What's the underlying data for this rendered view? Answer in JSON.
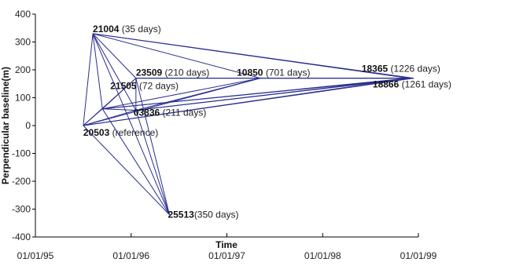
{
  "chart_data": {
    "type": "scatter",
    "xlabel": "Time",
    "ylabel": "Perpendicular baseline(m)",
    "x_ticks": [
      "01/01/95",
      "01/01/96",
      "01/01/97",
      "01/01/98",
      "01/01/99"
    ],
    "x_tick_values": [
      1995.0,
      1996.0,
      1997.0,
      1998.0,
      1999.0
    ],
    "y_ticks": [
      "400",
      "300",
      "200",
      "100",
      "0",
      "-100",
      "-200",
      "-300",
      "-400"
    ],
    "y_tick_values": [
      400,
      300,
      200,
      100,
      0,
      -100,
      -200,
      -300,
      -400
    ],
    "xlim": [
      1995.0,
      1999.0
    ],
    "ylim": [
      -400,
      400
    ],
    "color": "#2a2f8f",
    "nodes": [
      {
        "id": "20503",
        "desc": " (reference)",
        "x": 1995.5,
        "y": 0
      },
      {
        "id": "21004",
        "desc": " (35 days)",
        "x": 1995.6,
        "y": 330
      },
      {
        "id": "21505",
        "desc": " (72 days)",
        "x": 1995.7,
        "y": 60
      },
      {
        "id": "23509",
        "desc": " (210 days)",
        "x": 1996.05,
        "y": 170
      },
      {
        "id": "03836",
        "desc": " (211 days)",
        "x": 1996.05,
        "y": 55
      },
      {
        "id": "25513",
        "desc": "(350 days)",
        "x": 1996.4,
        "y": -320
      },
      {
        "id": "10850",
        "desc": " (701 days)",
        "x": 1997.35,
        "y": 170
      },
      {
        "id": "18365",
        "desc": " (1226 days)",
        "x": 1998.9,
        "y": 170
      },
      {
        "id": "18866",
        "desc": " (1261 days)",
        "x": 1998.95,
        "y": 170
      }
    ],
    "edges": [
      [
        "21004",
        "20503"
      ],
      [
        "21004",
        "21505"
      ],
      [
        "21004",
        "23509"
      ],
      [
        "21004",
        "03836"
      ],
      [
        "21004",
        "25513"
      ],
      [
        "21004",
        "10850"
      ],
      [
        "21004",
        "18365"
      ],
      [
        "21004",
        "18866"
      ],
      [
        "20503",
        "21505"
      ],
      [
        "20503",
        "23509"
      ],
      [
        "20503",
        "03836"
      ],
      [
        "20503",
        "25513"
      ],
      [
        "20503",
        "10850"
      ],
      [
        "20503",
        "18365"
      ],
      [
        "20503",
        "18866"
      ],
      [
        "21505",
        "23509"
      ],
      [
        "21505",
        "03836"
      ],
      [
        "21505",
        "25513"
      ],
      [
        "21505",
        "10850"
      ],
      [
        "21505",
        "18365"
      ],
      [
        "21505",
        "18866"
      ],
      [
        "23509",
        "03836"
      ],
      [
        "23509",
        "10850"
      ],
      [
        "23509",
        "18365"
      ],
      [
        "23509",
        "18866"
      ],
      [
        "03836",
        "10850"
      ],
      [
        "03836",
        "18365"
      ],
      [
        "03836",
        "18866"
      ],
      [
        "10850",
        "18365"
      ],
      [
        "10850",
        "18866"
      ],
      [
        "23509",
        "25513"
      ],
      [
        "03836",
        "25513"
      ]
    ]
  }
}
